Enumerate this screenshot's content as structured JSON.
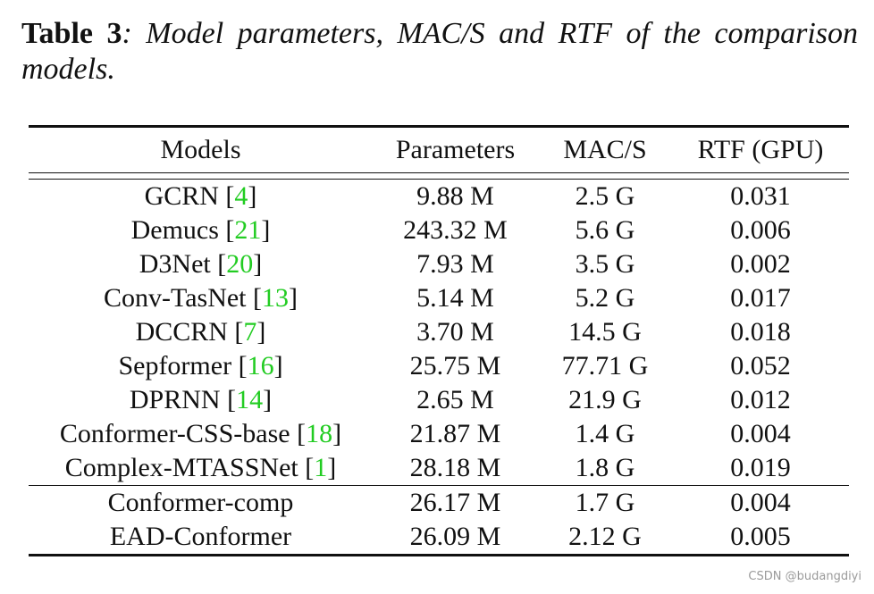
{
  "caption": {
    "label": "Table 3",
    "text": ":  Model parameters, MAC/S and RTF of the comparison models."
  },
  "table": {
    "headers": [
      "Models",
      "Parameters",
      "MAC/S",
      "RTF (GPU)"
    ],
    "rows_group1": [
      {
        "model": "GCRN",
        "ref": "4",
        "params": "9.88 M",
        "macs": "2.5 G",
        "rtf": "0.031"
      },
      {
        "model": "Demucs",
        "ref": "21",
        "params": "243.32 M",
        "macs": "5.6 G",
        "rtf": "0.006"
      },
      {
        "model": "D3Net",
        "ref": "20",
        "params": "7.93 M",
        "macs": "3.5 G",
        "rtf": "0.002"
      },
      {
        "model": "Conv-TasNet",
        "ref": "13",
        "params": "5.14 M",
        "macs": "5.2 G",
        "rtf": "0.017"
      },
      {
        "model": "DCCRN",
        "ref": "7",
        "params": "3.70 M",
        "macs": "14.5 G",
        "rtf": "0.018"
      },
      {
        "model": "Sepformer",
        "ref": "16",
        "params": "25.75 M",
        "macs": "77.71 G",
        "rtf": "0.052"
      },
      {
        "model": "DPRNN",
        "ref": "14",
        "params": "2.65 M",
        "macs": "21.9 G",
        "rtf": "0.012"
      },
      {
        "model": "Conformer-CSS-base",
        "ref": "18",
        "params": "21.87 M",
        "macs": "1.4 G",
        "rtf": "0.004"
      },
      {
        "model": "Complex-MTASSNet",
        "ref": "1",
        "params": "28.18 M",
        "macs": "1.8 G",
        "rtf": "0.019"
      }
    ],
    "rows_group2": [
      {
        "model": "Conformer-comp",
        "params": "26.17 M",
        "macs": "1.7 G",
        "rtf": "0.004"
      },
      {
        "model": "EAD-Conformer",
        "params": "26.09 M",
        "macs": "2.12 G",
        "rtf": "0.005"
      }
    ]
  },
  "watermark": "CSDN @budangdiyi",
  "colors": {
    "text": "#111111",
    "reference_link": "#22cc22",
    "watermark": "#9a9a9a"
  }
}
